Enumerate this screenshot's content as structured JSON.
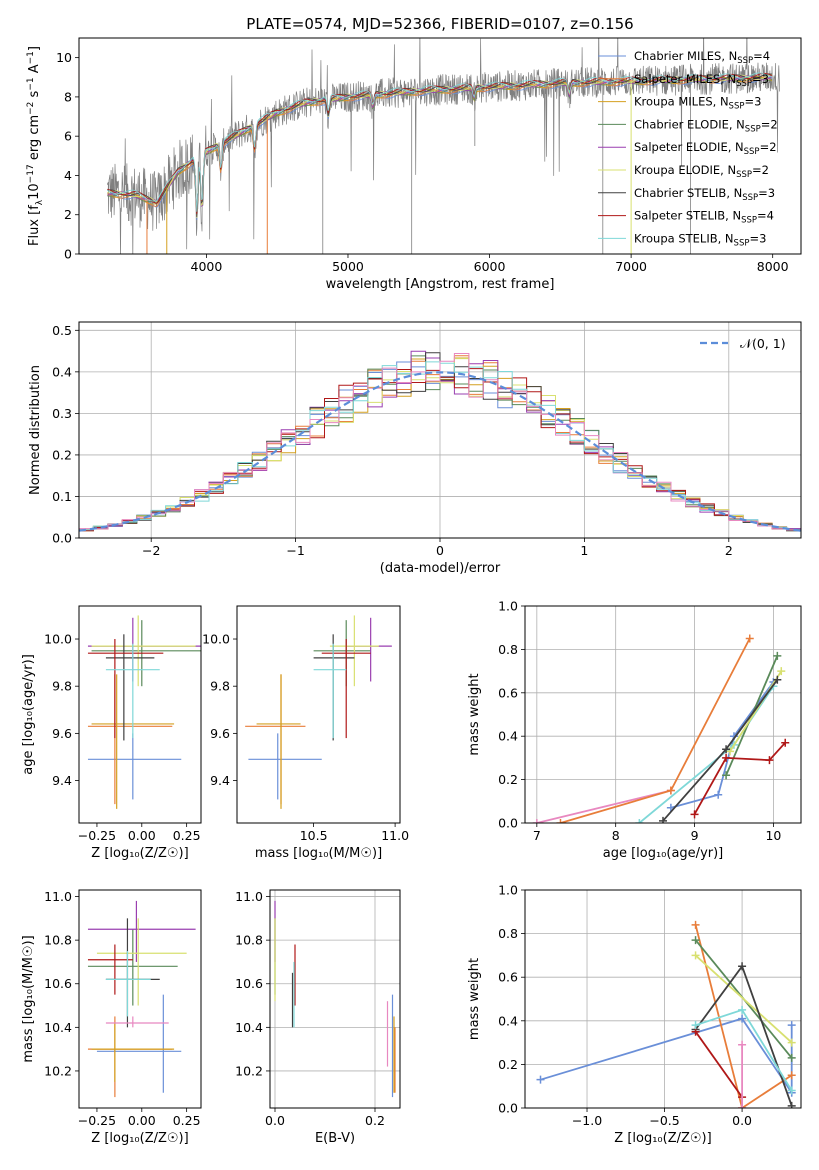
{
  "figure_title": "PLATE=0574, MJD=52366, FIBERID=0107, z=0.156",
  "colors": {
    "chabrier_miles": "#6a8fd8",
    "salpeter_miles": "#e87d3a",
    "kroupa_miles": "#d4a020",
    "chabrier_elodie": "#5a8a5a",
    "salpeter_elodie": "#9a3fb0",
    "kroupa_elodie": "#d8e070",
    "chabrier_stelib": "#404040",
    "salpeter_stelib": "#b01818",
    "kroupa_stelib": "#7fd8d8",
    "pink": "#e888c0",
    "data_gray": "#808080",
    "normal": "#5b8dd9"
  },
  "chart_data": [
    {
      "id": "spectrum",
      "type": "line",
      "xlabel": "wavelength [Angstrom, rest frame]",
      "ylabel": "Flux [f_λ10^-17 erg cm^-2 s^-1 A^-1]",
      "xlim": [
        3100,
        8200
      ],
      "ylim": [
        0,
        11
      ],
      "xticks": [
        4000,
        5000,
        6000,
        7000,
        8000
      ],
      "yticks": [
        0,
        2,
        4,
        6,
        8,
        10
      ],
      "legend_position": "upper-right",
      "legend": [
        {
          "label": "Chabrier MILES, N_SSP=4",
          "color": "chabrier_miles"
        },
        {
          "label": "Salpeter MILES, N_SSP=3",
          "color": "salpeter_miles"
        },
        {
          "label": "Kroupa MILES, N_SSP=3",
          "color": "kroupa_miles"
        },
        {
          "label": "Chabrier ELODIE, N_SSP=2",
          "color": "chabrier_elodie"
        },
        {
          "label": "Salpeter ELODIE, N_SSP=2",
          "color": "salpeter_elodie"
        },
        {
          "label": "Kroupa ELODIE, N_SSP=2",
          "color": "kroupa_elodie"
        },
        {
          "label": "Chabrier STELIB, N_SSP=3",
          "color": "chabrier_stelib"
        },
        {
          "label": "Salpeter STELIB, N_SSP=4",
          "color": "salpeter_stelib"
        },
        {
          "label": "Kroupa STELIB, N_SSP=3",
          "color": "kroupa_stelib"
        }
      ],
      "continuum_knots": [
        [
          3300,
          3.1
        ],
        [
          3500,
          3.0
        ],
        [
          3650,
          2.6
        ],
        [
          3800,
          4.2
        ],
        [
          3950,
          5.0
        ],
        [
          4100,
          5.6
        ],
        [
          4300,
          6.4
        ],
        [
          4500,
          7.2
        ],
        [
          4700,
          7.7
        ],
        [
          5000,
          8.0
        ],
        [
          5500,
          8.3
        ],
        [
          6000,
          8.5
        ],
        [
          6500,
          8.7
        ],
        [
          7000,
          8.8
        ],
        [
          7500,
          8.9
        ],
        [
          8000,
          9.0
        ]
      ],
      "dips": [
        [
          3933,
          3.0
        ],
        [
          3968,
          2.8
        ],
        [
          4102,
          1.3
        ],
        [
          4340,
          1.2
        ],
        [
          4861,
          0.8
        ],
        [
          5175,
          0.6
        ],
        [
          5890,
          0.5
        ],
        [
          6563,
          0.6
        ]
      ]
    },
    {
      "id": "residuals",
      "type": "area",
      "xlabel": "(data-model)/error",
      "ylabel": "Normed distribution",
      "xlim": [
        -2.5,
        2.5
      ],
      "ylim": [
        0,
        0.52
      ],
      "xticks": [
        -2,
        -1,
        0,
        1,
        2
      ],
      "yticks": [
        0.0,
        0.1,
        0.2,
        0.3,
        0.4,
        0.5
      ],
      "grid": true,
      "legend_position": "upper-right",
      "normal_label": "𝒩(0, 1)",
      "bin_width": 0.1,
      "series_colors": [
        "chabrier_miles",
        "salpeter_miles",
        "kroupa_miles",
        "chabrier_elodie",
        "salpeter_elodie",
        "kroupa_elodie",
        "chabrier_stelib",
        "salpeter_stelib",
        "kroupa_stelib",
        "pink"
      ]
    },
    {
      "id": "age_vs_z",
      "type": "scatter",
      "xlabel": "Z [log₁₀(Z/Z☉)]",
      "ylabel": "age  [log₁₀(age/yr)]",
      "xlim": [
        -0.35,
        0.33
      ],
      "ylim": [
        9.22,
        10.14
      ],
      "xticks": [
        -0.25,
        0.0,
        0.25
      ],
      "xticklabels": [
        "−0.25",
        "0.00",
        "0.25"
      ],
      "yticks": [
        9.4,
        9.6,
        9.8,
        10.0
      ],
      "yticklabels": [
        "9.4",
        "9.6",
        "9.8",
        "10.0"
      ],
      "points": [
        {
          "c": "chabrier_miles",
          "x": -0.05,
          "y": 9.49,
          "xe": [
            -0.3,
            0.22
          ],
          "ye": [
            9.32,
            9.6
          ]
        },
        {
          "c": "salpeter_miles",
          "x": -0.15,
          "y": 9.63,
          "xe": [
            -0.3,
            0.17
          ],
          "ye": [
            9.3,
            9.85
          ]
        },
        {
          "c": "kroupa_miles",
          "x": -0.14,
          "y": 9.64,
          "xe": [
            -0.28,
            0.18
          ],
          "ye": [
            9.28,
            9.85
          ]
        },
        {
          "c": "chabrier_elodie",
          "x": 0.0,
          "y": 9.95,
          "xe": [
            -0.28,
            0.33
          ],
          "ye": [
            9.8,
            10.08
          ]
        },
        {
          "c": "salpeter_elodie",
          "x": -0.05,
          "y": 9.97,
          "xe": [
            -0.3,
            0.33
          ],
          "ye": [
            9.82,
            10.09
          ]
        },
        {
          "c": "kroupa_elodie",
          "x": -0.02,
          "y": 9.97,
          "xe": [
            -0.28,
            0.3
          ],
          "ye": [
            9.8,
            10.1
          ]
        },
        {
          "c": "chabrier_stelib",
          "x": -0.1,
          "y": 9.92,
          "xe": [
            -0.2,
            0.07
          ],
          "ye": [
            9.57,
            10.02
          ]
        },
        {
          "c": "salpeter_stelib",
          "x": -0.15,
          "y": 9.94,
          "xe": [
            -0.3,
            0.12
          ],
          "ye": [
            9.58,
            10.0
          ]
        },
        {
          "c": "kroupa_stelib",
          "x": -0.05,
          "y": 9.87,
          "xe": [
            -0.2,
            0.1
          ],
          "ye": [
            9.58,
            9.98
          ]
        }
      ]
    },
    {
      "id": "age_vs_mass",
      "type": "scatter",
      "xlabel": "mass [log₁₀(M/M☉)]",
      "ylabel": "",
      "xlim": [
        10.03,
        11.03
      ],
      "ylim": [
        9.22,
        10.14
      ],
      "xticks": [
        10.5,
        11.0
      ],
      "xticklabels": [
        "10.5",
        "11.0"
      ],
      "yticks": [
        9.4,
        9.6,
        9.8,
        10.0
      ],
      "yticklabels": [
        "9.4",
        "9.6",
        "9.8",
        "10.0"
      ],
      "points": [
        {
          "c": "chabrier_miles",
          "x": 10.28,
          "y": 9.49,
          "xe": [
            10.1,
            10.55
          ],
          "ye": [
            9.32,
            9.6
          ]
        },
        {
          "c": "salpeter_miles",
          "x": 10.3,
          "y": 9.63,
          "xe": [
            10.08,
            10.45
          ],
          "ye": [
            9.3,
            9.85
          ]
        },
        {
          "c": "kroupa_miles",
          "x": 10.3,
          "y": 9.64,
          "xe": [
            10.15,
            10.42
          ],
          "ye": [
            9.28,
            9.85
          ]
        },
        {
          "c": "chabrier_elodie",
          "x": 10.7,
          "y": 9.95,
          "xe": [
            10.5,
            10.85
          ],
          "ye": [
            9.8,
            10.08
          ]
        },
        {
          "c": "salpeter_elodie",
          "x": 10.85,
          "y": 9.97,
          "xe": [
            10.7,
            10.98
          ],
          "ye": [
            9.82,
            10.09
          ]
        },
        {
          "c": "kroupa_elodie",
          "x": 10.75,
          "y": 9.97,
          "xe": [
            10.6,
            10.9
          ],
          "ye": [
            9.8,
            10.1
          ]
        },
        {
          "c": "chabrier_stelib",
          "x": 10.62,
          "y": 9.92,
          "xe": [
            10.5,
            10.75
          ],
          "ye": [
            9.57,
            10.02
          ]
        },
        {
          "c": "salpeter_stelib",
          "x": 10.7,
          "y": 9.94,
          "xe": [
            10.55,
            10.85
          ],
          "ye": [
            9.58,
            10.0
          ]
        },
        {
          "c": "kroupa_stelib",
          "x": 10.62,
          "y": 9.87,
          "xe": [
            10.5,
            10.7
          ],
          "ye": [
            9.58,
            9.98
          ]
        }
      ]
    },
    {
      "id": "weight_vs_age",
      "type": "line",
      "xlabel": "age  [log₁₀(age/yr)]",
      "ylabel": "mass weight",
      "xlim": [
        6.85,
        10.35
      ],
      "ylim": [
        0.0,
        1.0
      ],
      "xticks": [
        7,
        8,
        9,
        10
      ],
      "xticklabels": [
        "7",
        "8",
        "9",
        "10"
      ],
      "yticks": [
        0.0,
        0.2,
        0.4,
        0.6,
        0.8,
        1.0
      ],
      "yticklabels": [
        "0.0",
        "0.2",
        "0.4",
        "0.6",
        "0.8",
        "1.0"
      ],
      "grid": true,
      "series": [
        {
          "c": "pink",
          "x": [
            7.0,
            8.7
          ],
          "y": [
            0.0,
            0.15
          ]
        },
        {
          "c": "salpeter_miles",
          "x": [
            7.3,
            8.7,
            9.7
          ],
          "y": [
            0.0,
            0.15,
            0.85
          ]
        },
        {
          "c": "chabrier_miles",
          "x": [
            8.7,
            9.3,
            9.5,
            10.0
          ],
          "y": [
            0.07,
            0.13,
            0.4,
            0.65
          ]
        },
        {
          "c": "kroupa_stelib",
          "x": [
            8.3,
            9.5,
            10.0
          ],
          "y": [
            0.0,
            0.36,
            0.63
          ]
        },
        {
          "c": "chabrier_elodie",
          "x": [
            9.4,
            10.05
          ],
          "y": [
            0.22,
            0.77
          ]
        },
        {
          "c": "kroupa_elodie",
          "x": [
            9.45,
            10.1
          ],
          "y": [
            0.33,
            0.7
          ]
        },
        {
          "c": "chabrier_stelib",
          "x": [
            8.6,
            9.4,
            10.05
          ],
          "y": [
            0.01,
            0.34,
            0.66
          ]
        },
        {
          "c": "salpeter_stelib",
          "x": [
            9.0,
            9.4,
            9.95,
            10.15
          ],
          "y": [
            0.04,
            0.3,
            0.29,
            0.37
          ]
        }
      ]
    },
    {
      "id": "mass_vs_z",
      "type": "scatter",
      "xlabel": "Z [log₁₀(Z/Z☉)]",
      "ylabel": "mass [log₁₀(M/M☉)]",
      "xlim": [
        -0.35,
        0.33
      ],
      "ylim": [
        10.03,
        11.03
      ],
      "xticks": [
        -0.25,
        0.0,
        0.25
      ],
      "xticklabels": [
        "−0.25",
        "0.00",
        "0.25"
      ],
      "yticks": [
        10.2,
        10.4,
        10.6,
        10.8,
        11.0
      ],
      "yticklabels": [
        "10.2",
        "10.4",
        "10.6",
        "10.8",
        "11.0"
      ],
      "points": [
        {
          "c": "chabrier_miles",
          "x": 0.12,
          "y": 10.29,
          "xe": [
            -0.25,
            0.22
          ],
          "ye": [
            10.1,
            10.55
          ]
        },
        {
          "c": "salpeter_miles",
          "x": -0.15,
          "y": 10.3,
          "xe": [
            -0.3,
            0.17
          ],
          "ye": [
            10.08,
            10.45
          ]
        },
        {
          "c": "kroupa_miles",
          "x": -0.15,
          "y": 10.3,
          "xe": [
            -0.28,
            0.18
          ],
          "ye": [
            10.15,
            10.42
          ]
        },
        {
          "c": "chabrier_elodie",
          "x": -0.05,
          "y": 10.68,
          "xe": [
            -0.3,
            0.2
          ],
          "ye": [
            10.5,
            10.85
          ]
        },
        {
          "c": "salpeter_elodie",
          "x": -0.03,
          "y": 10.85,
          "xe": [
            -0.3,
            0.3
          ],
          "ye": [
            10.7,
            10.98
          ]
        },
        {
          "c": "kroupa_elodie",
          "x": -0.02,
          "y": 10.74,
          "xe": [
            -0.25,
            0.25
          ],
          "ye": [
            10.5,
            10.9
          ]
        },
        {
          "c": "chabrier_stelib",
          "x": -0.08,
          "y": 10.62,
          "xe": [
            -0.2,
            0.1
          ],
          "ye": [
            10.4,
            10.9
          ]
        },
        {
          "c": "salpeter_stelib",
          "x": -0.15,
          "y": 10.71,
          "xe": [
            -0.3,
            -0.05
          ],
          "ye": [
            10.55,
            10.78
          ]
        },
        {
          "c": "kroupa_stelib",
          "x": -0.08,
          "y": 10.62,
          "xe": [
            -0.2,
            0.05
          ],
          "ye": [
            10.45,
            10.75
          ]
        },
        {
          "c": "pink",
          "x": -0.05,
          "y": 10.42,
          "xe": [
            -0.2,
            0.15
          ],
          "ye": [
            10.4,
            10.45
          ]
        }
      ]
    },
    {
      "id": "mass_vs_ebv",
      "type": "scatter",
      "xlabel": "E(B-V)",
      "ylabel": "",
      "xlim": [
        -0.01,
        0.25
      ],
      "ylim": [
        10.03,
        11.03
      ],
      "xticks": [
        0.0,
        0.2
      ],
      "xticklabels": [
        "0.0",
        "0.2"
      ],
      "yticks": [
        10.2,
        10.4,
        10.6,
        10.8,
        11.0
      ],
      "yticklabels": [
        "10.2",
        "10.4",
        "10.6",
        "10.8",
        "11.0"
      ],
      "grid": true,
      "points": [
        {
          "c": "chabrier_miles",
          "x": 0.235,
          "y": 10.3,
          "ye": [
            10.08,
            10.55
          ]
        },
        {
          "c": "salpeter_miles",
          "x": 0.24,
          "y": 10.25,
          "ye": [
            10.1,
            10.4
          ]
        },
        {
          "c": "kroupa_miles",
          "x": 0.238,
          "y": 10.3,
          "ye": [
            10.1,
            10.45
          ]
        },
        {
          "c": "chabrier_elodie",
          "x": 0.0,
          "y": 10.75,
          "ye": [
            10.55,
            10.9
          ]
        },
        {
          "c": "salpeter_elodie",
          "x": 0.0,
          "y": 10.85,
          "ye": [
            10.7,
            10.98
          ]
        },
        {
          "c": "kroupa_elodie",
          "x": 0.0,
          "y": 10.72,
          "ye": [
            10.52,
            10.9
          ]
        },
        {
          "c": "chabrier_stelib",
          "x": 0.035,
          "y": 10.55,
          "ye": [
            10.4,
            10.65
          ]
        },
        {
          "c": "salpeter_stelib",
          "x": 0.04,
          "y": 10.65,
          "ye": [
            10.5,
            10.78
          ]
        },
        {
          "c": "kroupa_stelib",
          "x": 0.038,
          "y": 10.55,
          "ye": [
            10.4,
            10.7
          ]
        },
        {
          "c": "pink",
          "x": 0.225,
          "y": 10.35,
          "ye": [
            10.22,
            10.52
          ]
        }
      ]
    },
    {
      "id": "weight_vs_z",
      "type": "line",
      "xlabel": "Z [log₁₀(Z/Z☉)]",
      "ylabel": "mass weight",
      "xlim": [
        -1.4,
        0.38
      ],
      "ylim": [
        0.0,
        1.0
      ],
      "xticks": [
        -1.0,
        -0.5,
        0.0
      ],
      "xticklabels": [
        "−1.0",
        "−0.5",
        "0.0"
      ],
      "yticks": [
        0.0,
        0.2,
        0.4,
        0.6,
        0.8,
        1.0
      ],
      "yticklabels": [
        "0.0",
        "0.2",
        "0.4",
        "0.6",
        "0.8",
        "1.0"
      ],
      "grid": true,
      "series": [
        {
          "c": "chabrier_miles",
          "x": [
            -1.3,
            0.0,
            0.32,
            0.32
          ],
          "y": [
            0.13,
            0.41,
            0.07,
            0.38
          ]
        },
        {
          "c": "salpeter_miles",
          "x": [
            -0.3,
            0.0,
            0.32
          ],
          "y": [
            0.84,
            0.0,
            0.15
          ]
        },
        {
          "c": "chabrier_elodie",
          "x": [
            -0.3,
            0.32
          ],
          "y": [
            0.77,
            0.23
          ]
        },
        {
          "c": "kroupa_elodie",
          "x": [
            -0.3,
            0.32
          ],
          "y": [
            0.7,
            0.3
          ]
        },
        {
          "c": "chabrier_stelib",
          "x": [
            -0.3,
            0.0,
            0.32
          ],
          "y": [
            0.36,
            0.65,
            0.01
          ]
        },
        {
          "c": "salpeter_stelib",
          "x": [
            -0.3,
            0.0
          ],
          "y": [
            0.35,
            0.05
          ]
        },
        {
          "c": "kroupa_stelib",
          "x": [
            -0.3,
            0.0,
            0.32
          ],
          "y": [
            0.38,
            0.45,
            0.08
          ]
        },
        {
          "c": "pink",
          "x": [
            0.0,
            0.0
          ],
          "y": [
            0.0,
            0.29
          ]
        }
      ]
    }
  ]
}
